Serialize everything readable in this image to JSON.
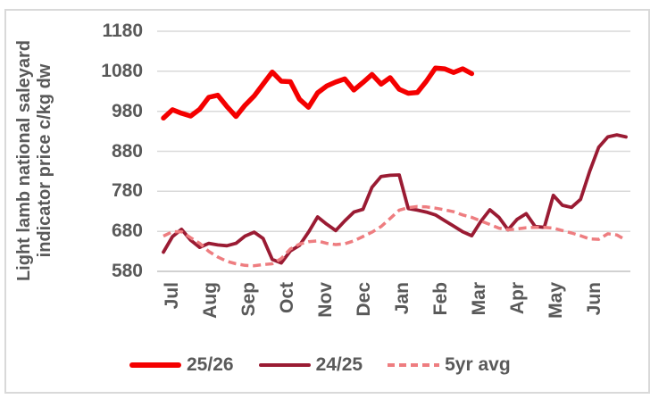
{
  "chart_data": {
    "type": "line",
    "title": "",
    "ylabel": "Light lamb national saleyard indicator price c/kg dw",
    "ylabel_lines": [
      "Light lamb national saleyard",
      "indicator price c/kg dw"
    ],
    "ylim": [
      580,
      1180
    ],
    "y_ticks": [
      1180,
      1080,
      980,
      880,
      780,
      680,
      580
    ],
    "x_tick_labels": [
      "Jul",
      "Aug",
      "Sep",
      "Oct",
      "Nov",
      "Dec",
      "Jan",
      "Feb",
      "Mar",
      "Apr",
      "May",
      "Jun"
    ],
    "x_unit": "weekly observations across a Jul-Jun season",
    "grid": "horizontal",
    "legend_position": "bottom",
    "colors": {
      "text": "#595959",
      "gridline": "#D9D9D9",
      "axis": "#C2C2C2",
      "border": "#D9D9D9"
    },
    "series": [
      {
        "name": "25/26",
        "color": "#F40000",
        "width": 5.5,
        "dash": null,
        "values": [
          963,
          984,
          975,
          968,
          985,
          1015,
          1020,
          992,
          967,
          995,
          1018,
          1048,
          1078,
          1055,
          1054,
          1010,
          990,
          1026,
          1043,
          1053,
          1061,
          1033,
          1052,
          1072,
          1048,
          1064,
          1035,
          1025,
          1027,
          1055,
          1088,
          1086,
          1077,
          1086,
          1074,
          null,
          null,
          null,
          null,
          null,
          null,
          null,
          null,
          null,
          null,
          null,
          null,
          null,
          null,
          null,
          null,
          null
        ]
      },
      {
        "name": "24/25",
        "color": "#9A1B33",
        "width": 3.8,
        "dash": null,
        "values": [
          628,
          667,
          685,
          658,
          640,
          650,
          646,
          644,
          650,
          668,
          678,
          662,
          610,
          601,
          631,
          645,
          678,
          716,
          698,
          682,
          706,
          728,
          735,
          790,
          817,
          820,
          821,
          737,
          733,
          728,
          721,
          707,
          693,
          679,
          669,
          705,
          734,
          715,
          684,
          710,
          724,
          692,
          690,
          770,
          745,
          740,
          760,
          830,
          890,
          916,
          921,
          916
        ]
      },
      {
        "name": "5yr avg",
        "color": "#EE7D80",
        "width": 3.5,
        "dash": "9 5",
        "values": [
          668,
          679,
          679,
          664,
          650,
          630,
          616,
          605,
          599,
          595,
          594,
          597,
          599,
          612,
          636,
          648,
          654,
          656,
          650,
          647,
          649,
          656,
          667,
          678,
          692,
          712,
          733,
          739,
          742,
          741,
          738,
          734,
          729,
          721,
          715,
          706,
          697,
          688,
          684,
          686,
          689,
          690,
          690,
          688,
          682,
          676,
          669,
          661,
          660,
          674,
          671,
          658
        ]
      }
    ]
  }
}
